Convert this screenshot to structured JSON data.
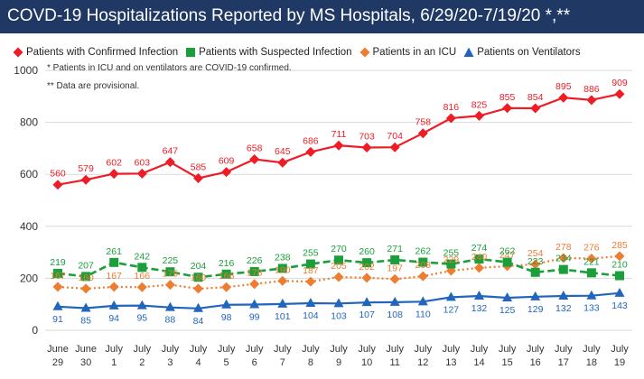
{
  "title": "COVD-19 Hospitalizations Reported by MS Hospitals, 6/29/20-7/19/20 *,**",
  "notes": [
    "* Patients in ICU and on ventilators are COVID-19 confirmed.",
    "** Data are provisional."
  ],
  "colors": {
    "title_bg": "#1f3864",
    "confirmed": "#ee1c25",
    "suspected": "#1a9f3b",
    "icu": "#ed7d31",
    "ventilators": "#2266bb",
    "grid": "#d9d9d9"
  },
  "chart_data": {
    "type": "line",
    "categories": [
      [
        "June",
        "29"
      ],
      [
        "June",
        "30"
      ],
      [
        "July",
        "1"
      ],
      [
        "July",
        "2"
      ],
      [
        "July",
        "3"
      ],
      [
        "July",
        "4"
      ],
      [
        "July",
        "5"
      ],
      [
        "July",
        "6"
      ],
      [
        "July",
        "7"
      ],
      [
        "July",
        "8"
      ],
      [
        "July",
        "9"
      ],
      [
        "July",
        "10"
      ],
      [
        "July",
        "11"
      ],
      [
        "July",
        "12"
      ],
      [
        "July",
        "13"
      ],
      [
        "July",
        "14"
      ],
      [
        "July",
        "15"
      ],
      [
        "July",
        "16"
      ],
      [
        "July",
        "17"
      ],
      [
        "July",
        "18"
      ],
      [
        "July",
        "19"
      ]
    ],
    "ylim": [
      0,
      1000
    ],
    "yticks": [
      "0",
      "200",
      "400",
      "600",
      "800",
      "1000"
    ],
    "grid": "horizontal",
    "legend_position": "top",
    "series": [
      {
        "key": "confirmed",
        "name": "Patients with Confirmed Infection",
        "marker": "diamond",
        "line": "solid",
        "values": [
          560,
          579,
          602,
          603,
          647,
          585,
          609,
          658,
          645,
          686,
          711,
          703,
          704,
          758,
          816,
          825,
          855,
          854,
          895,
          886,
          909
        ],
        "labels": [
          "560",
          "579",
          "602",
          "603",
          "647",
          "585",
          "609",
          "658",
          "645",
          "686",
          "711",
          "703",
          "704",
          "758",
          "816",
          "825",
          "855",
          "854",
          "895",
          "886",
          "909"
        ]
      },
      {
        "key": "suspected",
        "name": "Patients with Suspected Infection",
        "marker": "square",
        "line": "dashed",
        "values": [
          219,
          207,
          261,
          242,
          225,
          204,
          216,
          226,
          238,
          255,
          270,
          260,
          271,
          262,
          255,
          274,
          262,
          223,
          234,
          221,
          210
        ],
        "labels": [
          "219",
          "207",
          "261",
          "242",
          "225",
          "204",
          "216",
          "226",
          "238",
          "255",
          "270",
          "260",
          "271",
          "262",
          "255",
          "274",
          "262",
          "223",
          "234",
          "221",
          "210"
        ]
      },
      {
        "key": "icu",
        "name": "Patients in an ICU",
        "marker": "diamond",
        "line": "dotted",
        "values": [
          167,
          160,
          167,
          166,
          175,
          160,
          166,
          178,
          190,
          187,
          205,
          202,
          197,
          208,
          229,
          240,
          247,
          254,
          278,
          276,
          285
        ],
        "labels": [
          "167",
          "160",
          "167",
          "166",
          "175",
          "160",
          "166",
          "178",
          "190",
          "187",
          "205",
          "202",
          "197",
          "208",
          "229",
          "240",
          "247",
          "254",
          "278",
          "276",
          "285"
        ]
      },
      {
        "key": "ventilators",
        "name": "Patients on Ventilators",
        "marker": "triangle",
        "line": "solid",
        "values": [
          91,
          85,
          94,
          95,
          88,
          84,
          98,
          99,
          101,
          104,
          103,
          107,
          108,
          110,
          127,
          132,
          125,
          129,
          132,
          133,
          143
        ],
        "labels": [
          "91",
          "85",
          "94",
          "95",
          "88",
          "84",
          "98",
          "99",
          "101",
          "104",
          "103",
          "107",
          "108",
          "110",
          "127",
          "132",
          "125",
          "129",
          "132",
          "133",
          "143"
        ]
      }
    ]
  }
}
